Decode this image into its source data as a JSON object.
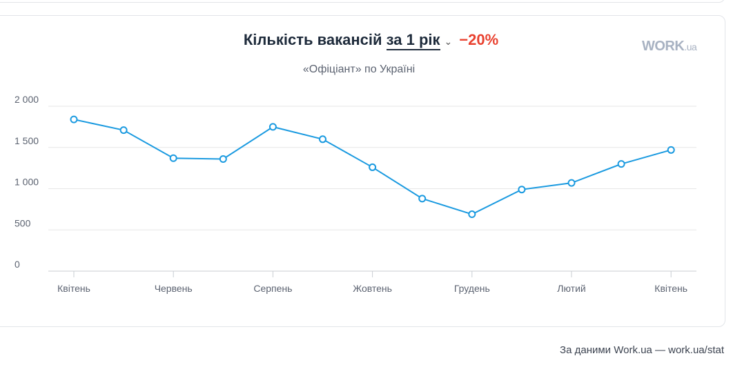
{
  "header": {
    "title": "Кількість вакансій",
    "period": "за 1 рік",
    "change": "−20%",
    "subtitle": "«Офіціант» по Україні",
    "logo": "WORK.ua"
  },
  "footer": "За даними Work.ua — work.ua/stat",
  "colors": {
    "line": "#1a9ae0",
    "change": "#e9412f"
  },
  "chart_data": {
    "type": "line",
    "title": "Кількість вакансій за 1 рік",
    "subtitle": "«Офіціант» по Україні",
    "x_tick_labels": [
      "Квітень",
      "Червень",
      "Серпень",
      "Жовтень",
      "Грудень",
      "Лютий",
      "Квітень"
    ],
    "y_tick_labels": [
      "0",
      "500",
      "1 000",
      "1 500",
      "2 000"
    ],
    "ylim": [
      0,
      2000
    ],
    "grid": true,
    "series": [
      {
        "values": [
          1840,
          1710,
          1370,
          1360,
          1750,
          1600,
          1260,
          880,
          690,
          990,
          1070,
          1300,
          1470
        ]
      }
    ]
  }
}
